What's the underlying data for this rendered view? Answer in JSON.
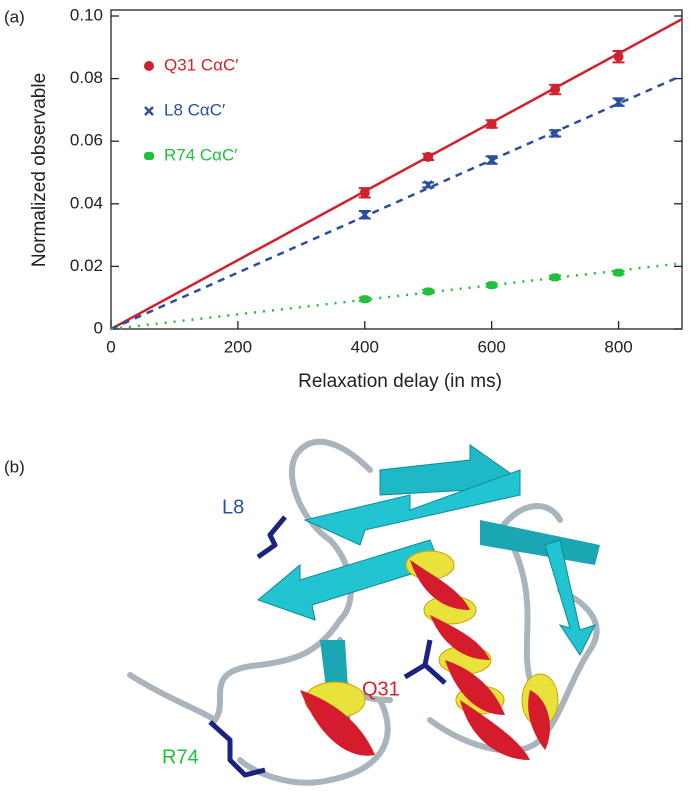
{
  "chart_data": {
    "type": "scatter",
    "panel_label": "(a)",
    "x_label": "Relaxation delay (in ms)",
    "y_label": "Normalized observable",
    "x": [
      400,
      500,
      600,
      700,
      800
    ],
    "fit_x": [
      0,
      900
    ],
    "series": [
      {
        "name": "Q31 CαC′",
        "color": "#d0222e",
        "marker": "circle",
        "dash": "solid",
        "values": [
          0.0435,
          0.055,
          0.0655,
          0.0765,
          0.087
        ],
        "errors": [
          0.0015,
          0.001,
          0.0012,
          0.0015,
          0.0018
        ],
        "fit_values": [
          0,
          0.099
        ]
      },
      {
        "name": "L8 CαC′",
        "color": "#2b4ea0",
        "marker": "cross",
        "dash": "dashed",
        "values": [
          0.0365,
          0.046,
          0.054,
          0.0625,
          0.0725
        ],
        "errors": [
          0.0012,
          0.0008,
          0.0012,
          0.001,
          0.0012
        ],
        "fit_values": [
          0,
          0.081
        ]
      },
      {
        "name": "R74 CαC′",
        "color": "#1fc03c",
        "marker": "square",
        "dash": "dotted",
        "values": [
          0.0095,
          0.012,
          0.014,
          0.0165,
          0.018
        ],
        "errors": [
          0.0005,
          0.0005,
          0.0005,
          0.0005,
          0.0005
        ],
        "fit_values": [
          0,
          0.021
        ]
      }
    ],
    "xlim": [
      0,
      900
    ],
    "xticks": [
      0,
      200,
      400,
      600,
      800
    ],
    "ylim": [
      0,
      0.1
    ],
    "yticks": [
      0,
      0.02,
      0.04,
      0.06,
      0.08,
      {
        "value": 0.1,
        "label": "0.10"
      }
    ]
  },
  "structure": {
    "panel_label": "(b)",
    "labels": [
      "L8",
      "Q31",
      "R74"
    ]
  }
}
